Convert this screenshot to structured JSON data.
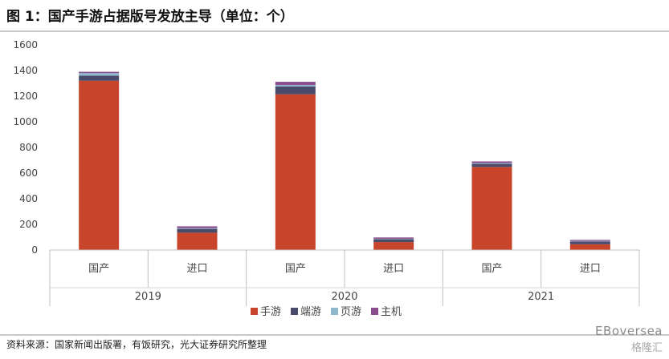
{
  "header": {
    "title": "图 1：国产手游占据版号发放主导（单位：个）"
  },
  "footer": {
    "source": "资料来源：国家新闻出版署，有饭研究，光大证券研究所整理"
  },
  "watermark": {
    "line1": "EBoversea",
    "line2": "格隆汇"
  },
  "chart_data": {
    "type": "bar",
    "stacked": true,
    "title": "",
    "xlabel": "",
    "ylabel": "",
    "ylim": [
      0,
      1600
    ],
    "yticks": [
      0,
      200,
      400,
      600,
      800,
      1000,
      1200,
      1400,
      1600
    ],
    "grid": false,
    "legend_position": "bottom",
    "groups": [
      {
        "label": "2019",
        "categories": [
          "国产",
          "进口"
        ]
      },
      {
        "label": "2020",
        "categories": [
          "国产",
          "进口"
        ]
      },
      {
        "label": "2021",
        "categories": [
          "国产",
          "进口"
        ]
      }
    ],
    "series": [
      {
        "name": "手游",
        "color": "#c8442a",
        "values": [
          1320,
          135,
          1215,
          62,
          648,
          45
        ]
      },
      {
        "name": "端游",
        "color": "#4a4a6a",
        "values": [
          40,
          30,
          60,
          22,
          25,
          22
        ]
      },
      {
        "name": "页游",
        "color": "#8fb8cc",
        "values": [
          20,
          6,
          12,
          4,
          6,
          4
        ]
      },
      {
        "name": "主机",
        "color": "#8a4e8e",
        "values": [
          10,
          14,
          25,
          10,
          12,
          8
        ]
      }
    ]
  }
}
